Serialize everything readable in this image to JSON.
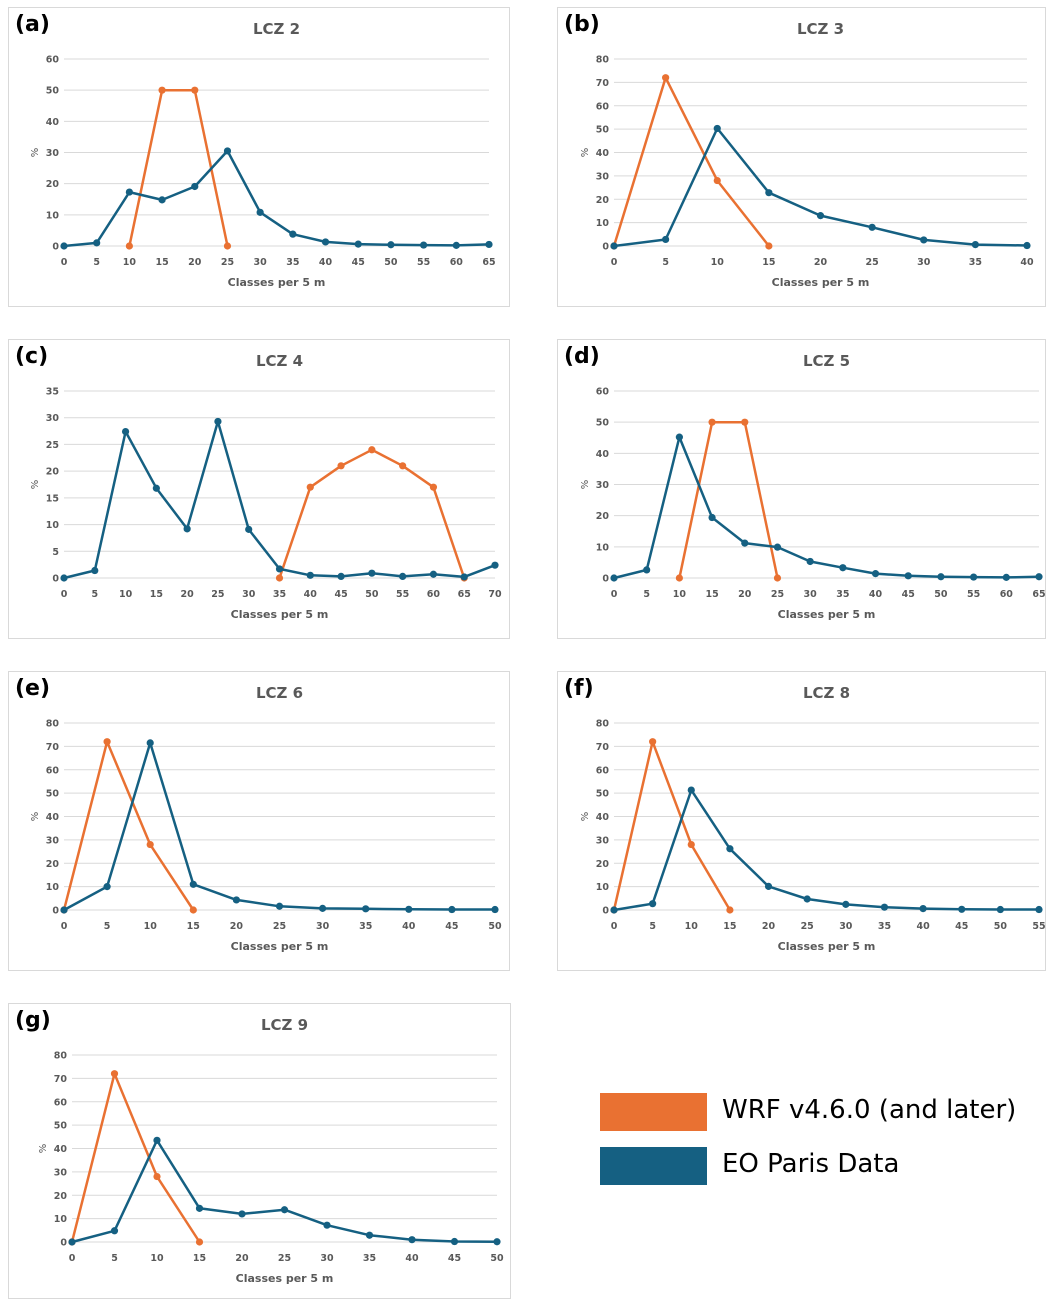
{
  "colors": {
    "wrf": "#E97132",
    "eo": "#156082",
    "grid": "#d9d9d9",
    "axis_text": "#595959"
  },
  "legend": {
    "items": [
      {
        "label": "WRF v4.6.0 (and later)",
        "color": "#E97132"
      },
      {
        "label": "EO Paris Data",
        "color": "#156082"
      }
    ]
  },
  "chart_data": [
    {
      "type": "line",
      "panel_label": "(a)",
      "title": "LCZ 2",
      "xlabel": "Classes per 5 m",
      "ylabel": "%",
      "x": [
        0,
        5,
        10,
        15,
        20,
        25,
        30,
        35,
        40,
        45,
        50,
        55,
        60,
        65
      ],
      "ylim": [
        0,
        60
      ],
      "yticks": [
        0,
        10,
        20,
        30,
        40,
        50,
        60
      ],
      "series": [
        {
          "name": "WRF v4.6.0 (and later)",
          "x": [
            10,
            15,
            20,
            25
          ],
          "y": [
            0,
            50,
            50,
            0
          ]
        },
        {
          "name": "EO Paris Data",
          "x": [
            0,
            5,
            10,
            15,
            20,
            25,
            30,
            35,
            40,
            45,
            50,
            55,
            60,
            65
          ],
          "y": [
            0,
            1,
            17.3,
            14.8,
            19.1,
            30.5,
            10.8,
            3.8,
            1.3,
            0.6,
            0.4,
            0.3,
            0.2,
            0.5
          ]
        }
      ]
    },
    {
      "type": "line",
      "panel_label": "(b)",
      "title": "LCZ 3",
      "xlabel": "Classes per 5 m",
      "ylabel": "%",
      "x": [
        0,
        5,
        10,
        15,
        20,
        25,
        30,
        35,
        40
      ],
      "ylim": [
        0,
        80
      ],
      "yticks": [
        0,
        10,
        20,
        30,
        40,
        50,
        60,
        70,
        80
      ],
      "series": [
        {
          "name": "WRF v4.6.0 (and later)",
          "x": [
            0,
            5,
            10,
            15
          ],
          "y": [
            0,
            72,
            28,
            0
          ]
        },
        {
          "name": "EO Paris Data",
          "x": [
            0,
            5,
            10,
            15,
            20,
            25,
            30,
            35,
            40
          ],
          "y": [
            0,
            2.8,
            50.3,
            22.8,
            13,
            8,
            2.6,
            0.6,
            0.2
          ]
        }
      ]
    },
    {
      "type": "line",
      "panel_label": "(c)",
      "title": "LCZ 4",
      "xlabel": "Classes per 5 m",
      "ylabel": "%",
      "x": [
        0,
        5,
        10,
        15,
        20,
        25,
        30,
        35,
        40,
        45,
        50,
        55,
        60,
        65,
        70
      ],
      "ylim": [
        0,
        35
      ],
      "yticks": [
        0,
        5,
        10,
        15,
        20,
        25,
        30,
        35
      ],
      "series": [
        {
          "name": "WRF v4.6.0 (and later)",
          "x": [
            35,
            40,
            45,
            50,
            55,
            60,
            65
          ],
          "y": [
            0,
            17,
            21,
            24,
            21,
            17,
            0
          ]
        },
        {
          "name": "EO Paris Data",
          "x": [
            0,
            5,
            10,
            15,
            20,
            25,
            30,
            35,
            40,
            45,
            50,
            55,
            60,
            65,
            70
          ],
          "y": [
            0,
            1.4,
            27.4,
            16.8,
            9.2,
            29.3,
            9.1,
            1.7,
            0.5,
            0.3,
            0.9,
            0.3,
            0.7,
            0.2,
            2.4
          ]
        }
      ]
    },
    {
      "type": "line",
      "panel_label": "(d)",
      "title": "LCZ 5",
      "xlabel": "Classes per 5 m",
      "ylabel": "%",
      "x": [
        0,
        5,
        10,
        15,
        20,
        25,
        30,
        35,
        40,
        45,
        50,
        55,
        60,
        65
      ],
      "ylim": [
        0,
        60
      ],
      "yticks": [
        0,
        10,
        20,
        30,
        40,
        50,
        60
      ],
      "series": [
        {
          "name": "WRF v4.6.0 (and later)",
          "x": [
            10,
            15,
            20,
            25
          ],
          "y": [
            0,
            50,
            50,
            0
          ]
        },
        {
          "name": "EO Paris Data",
          "x": [
            0,
            5,
            10,
            15,
            20,
            25,
            30,
            35,
            40,
            45,
            50,
            55,
            60,
            65
          ],
          "y": [
            0,
            2.6,
            45.2,
            19.4,
            11.2,
            9.9,
            5.3,
            3.3,
            1.4,
            0.7,
            0.4,
            0.3,
            0.2,
            0.4
          ]
        }
      ]
    },
    {
      "type": "line",
      "panel_label": "(e)",
      "title": "LCZ 6",
      "xlabel": "Classes per 5 m",
      "ylabel": "%",
      "x": [
        0,
        5,
        10,
        15,
        20,
        25,
        30,
        35,
        40,
        45,
        50
      ],
      "ylim": [
        0,
        80
      ],
      "yticks": [
        0,
        10,
        20,
        30,
        40,
        50,
        60,
        70,
        80
      ],
      "series": [
        {
          "name": "WRF v4.6.0 (and later)",
          "x": [
            0,
            5,
            10,
            15
          ],
          "y": [
            0,
            72,
            28,
            0
          ]
        },
        {
          "name": "EO Paris Data",
          "x": [
            0,
            5,
            10,
            15,
            20,
            25,
            30,
            35,
            40,
            45,
            50
          ],
          "y": [
            0,
            10,
            71.5,
            11,
            4.3,
            1.6,
            0.7,
            0.5,
            0.3,
            0.2,
            0.2
          ]
        }
      ]
    },
    {
      "type": "line",
      "panel_label": "(f)",
      "title": "LCZ 8",
      "xlabel": "Classes per 5 m",
      "ylabel": "%",
      "x": [
        0,
        5,
        10,
        15,
        20,
        25,
        30,
        35,
        40,
        45,
        50,
        55
      ],
      "ylim": [
        0,
        80
      ],
      "yticks": [
        0,
        10,
        20,
        30,
        40,
        50,
        60,
        70,
        80
      ],
      "series": [
        {
          "name": "WRF v4.6.0 (and later)",
          "x": [
            0,
            5,
            10,
            15
          ],
          "y": [
            0,
            72,
            28,
            0
          ]
        },
        {
          "name": "EO Paris Data",
          "x": [
            0,
            5,
            10,
            15,
            20,
            25,
            30,
            35,
            40,
            45,
            50,
            55
          ],
          "y": [
            0,
            2.7,
            51.3,
            26.2,
            10.1,
            4.7,
            2.4,
            1.2,
            0.6,
            0.3,
            0.2,
            0.2
          ]
        }
      ]
    },
    {
      "type": "line",
      "panel_label": "(g)",
      "title": "LCZ 9",
      "xlabel": "Classes per 5 m",
      "ylabel": "%",
      "x": [
        0,
        5,
        10,
        15,
        20,
        25,
        30,
        35,
        40,
        45,
        50
      ],
      "ylim": [
        0,
        80
      ],
      "yticks": [
        0,
        10,
        20,
        30,
        40,
        50,
        60,
        70,
        80
      ],
      "series": [
        {
          "name": "WRF v4.6.0 (and later)",
          "x": [
            0,
            5,
            10,
            15
          ],
          "y": [
            0,
            72,
            28,
            0
          ]
        },
        {
          "name": "EO Paris Data",
          "x": [
            0,
            5,
            10,
            15,
            20,
            25,
            30,
            35,
            40,
            45,
            50
          ],
          "y": [
            0,
            4.8,
            43.5,
            14.4,
            12,
            13.8,
            7.2,
            2.9,
            1,
            0.2,
            0.1
          ]
        }
      ]
    }
  ]
}
